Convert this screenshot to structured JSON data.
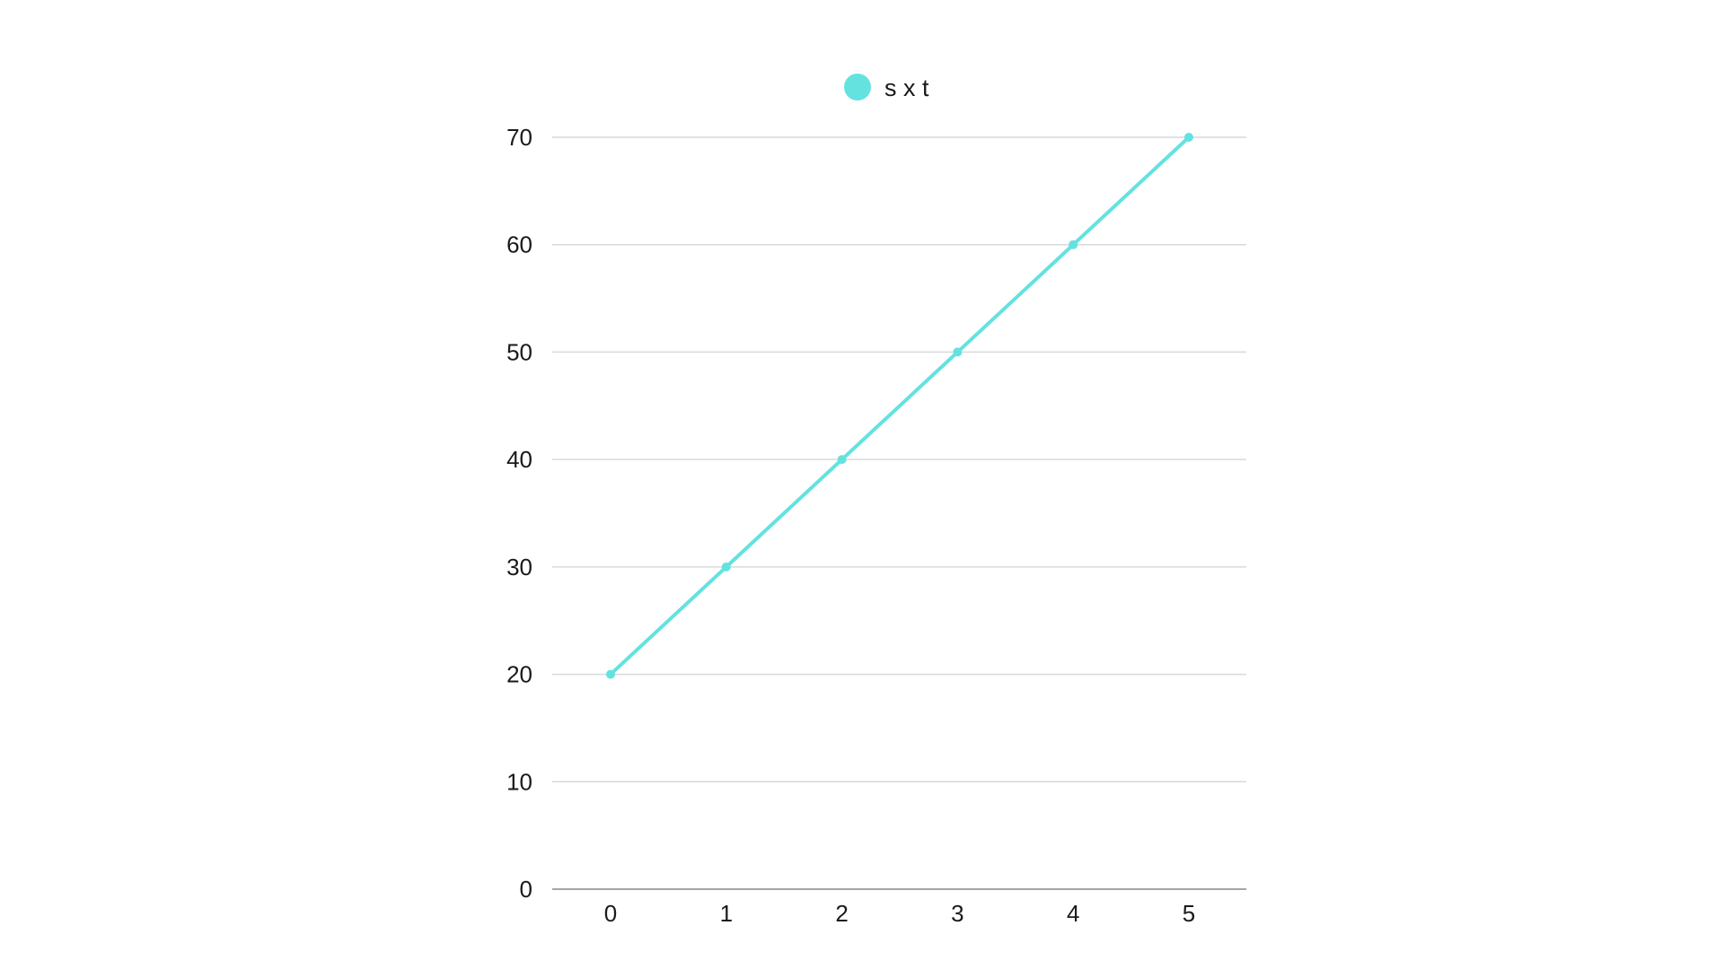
{
  "chart_data": {
    "type": "line",
    "title": "",
    "xlabel": "",
    "ylabel": "",
    "x": [
      0,
      1,
      2,
      3,
      4,
      5
    ],
    "series": [
      {
        "name": "s x t",
        "values": [
          20,
          30,
          40,
          50,
          60,
          70
        ],
        "color": "#63e2e0"
      }
    ],
    "xticks": [
      "0",
      "1",
      "2",
      "3",
      "4",
      "5"
    ],
    "yticks": [
      "0",
      "10",
      "20",
      "30",
      "40",
      "50",
      "60",
      "70"
    ],
    "ylim": [
      0,
      70
    ],
    "grid": true,
    "legend_position": "top-center",
    "colors": {
      "grid": "#d9d9d9",
      "axis": "#a6a6a6",
      "text": "#1a1a1a"
    }
  }
}
